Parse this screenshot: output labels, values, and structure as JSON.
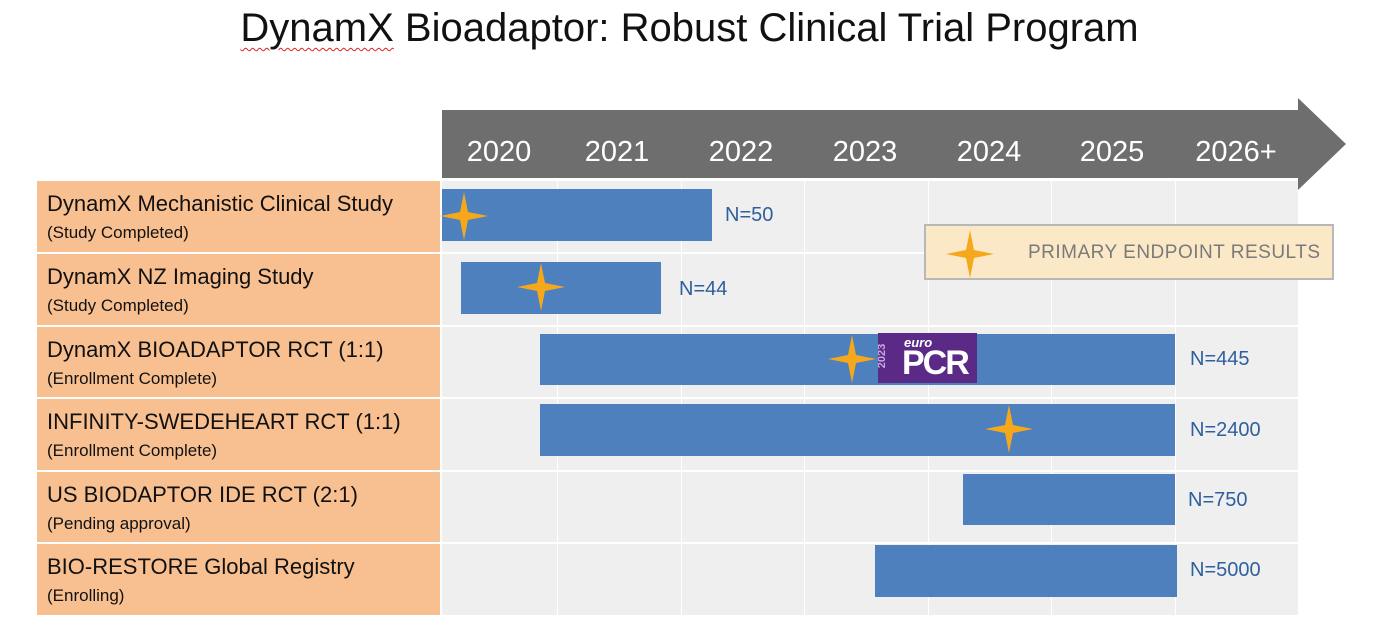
{
  "title": {
    "pre": "DynamX",
    "rest": " Bioadaptor:  Robust Clinical Trial Program"
  },
  "timeline": {
    "years": [
      "2020",
      "2021",
      "2022",
      "2023",
      "2024",
      "2025",
      "2026+"
    ]
  },
  "rows": [
    {
      "title": "DynamX Mechanistic Clinical Study",
      "subtitle": "(Study Completed)",
      "n": "N=50"
    },
    {
      "title": "DynamX NZ Imaging Study",
      "subtitle": "(Study Completed)",
      "n": "N=44"
    },
    {
      "title": "DynamX BIOADAPTOR RCT (1:1)",
      "subtitle": "(Enrollment Complete)",
      "n": "N=445"
    },
    {
      "title": "INFINITY-SWEDEHEART RCT (1:1)",
      "subtitle": "(Enrollment Complete)",
      "n": "N=2400"
    },
    {
      "title": "US BIODAPTOR IDE RCT (2:1)",
      "subtitle": "(Pending approval)",
      "n": "N=750"
    },
    {
      "title": "BIO-RESTORE Global Registry",
      "subtitle": "(Enrolling)",
      "n": "N=5000"
    }
  ],
  "legend": {
    "label": "PRIMARY ENDPOINT RESULTS"
  },
  "logo": {
    "year": "2023",
    "euro": "euro",
    "name": "PCR"
  },
  "colors": {
    "bar": "#4e80bd",
    "star": "#f5a81c",
    "label_bg": "#f8c090",
    "arrow": "#6e6e6e",
    "n_text": "#2e5f9e"
  },
  "icons": {
    "star": "four-point-star-icon",
    "arrow": "timeline-arrow"
  }
}
